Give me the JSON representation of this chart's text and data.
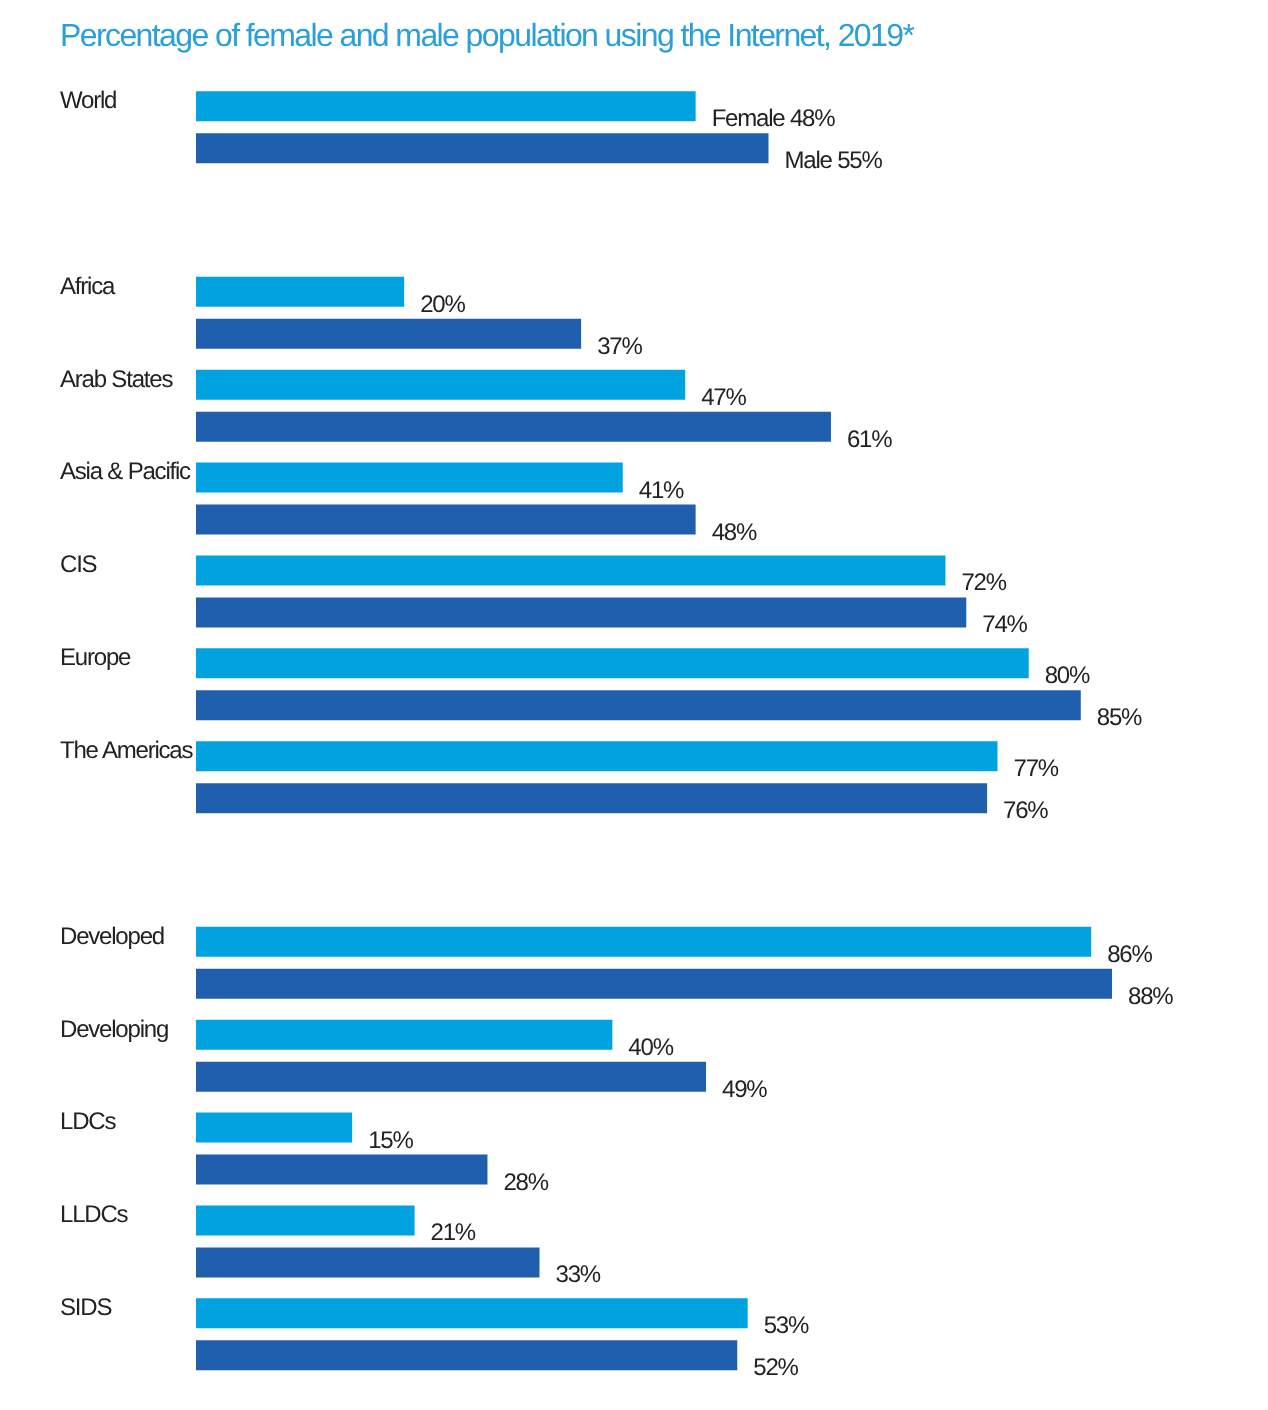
{
  "chart_data": {
    "type": "bar",
    "orientation": "horizontal",
    "title": "Percentage of female and male population using the Internet, 2019*",
    "categories": [
      "World",
      null,
      "Africa",
      "Arab States",
      "Asia & Pacific",
      "CIS",
      "Europe",
      "The Americas",
      null,
      "Developed",
      "Developing",
      "LDCs",
      "LLDCs",
      "SIDS"
    ],
    "series": [
      {
        "name": "Female",
        "color": "#00a3e0",
        "values": [
          48,
          null,
          20,
          47,
          41,
          72,
          80,
          77,
          null,
          86,
          40,
          15,
          21,
          53
        ],
        "value_labels": [
          "48%",
          null,
          "20%",
          "47%",
          "41%",
          "72%",
          "80%",
          "77%",
          null,
          "86%",
          "40%",
          "15%",
          "21%",
          "53%"
        ]
      },
      {
        "name": "Male",
        "color": "#205fad",
        "values": [
          55,
          null,
          37,
          61,
          48,
          74,
          85,
          76,
          null,
          88,
          49,
          28,
          33,
          52
        ],
        "value_labels": [
          "55%",
          null,
          "37%",
          "61%",
          "48%",
          "74%",
          "85%",
          "76%",
          null,
          "88%",
          "49%",
          "28%",
          "33%",
          "52%"
        ]
      }
    ]
  }
}
